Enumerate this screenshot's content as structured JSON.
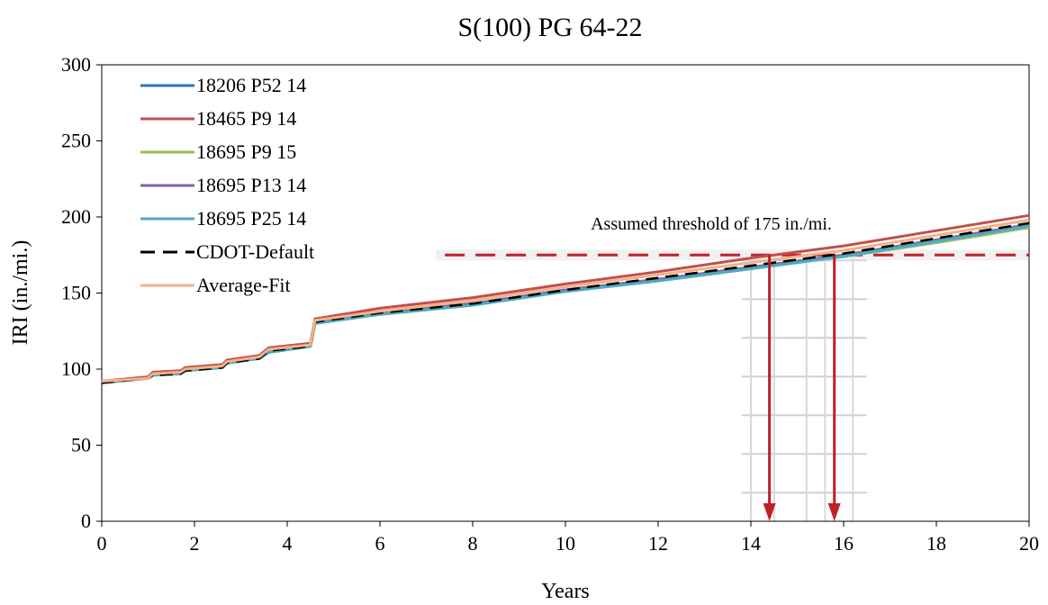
{
  "chart_data": {
    "type": "line",
    "title": "S(100) PG 64-22",
    "xlabel": "Years",
    "ylabel": "IRI (in./mi.)",
    "xlim": [
      0,
      20
    ],
    "ylim": [
      0,
      300
    ],
    "x_ticks": [
      0,
      2,
      4,
      6,
      8,
      10,
      12,
      14,
      16,
      18,
      20
    ],
    "y_ticks": [
      0,
      50,
      100,
      150,
      200,
      250,
      300
    ],
    "grid": false,
    "legend_position": "top-left",
    "series": [
      {
        "name": "18206 P52 14",
        "color": "#2e75b6",
        "dash": "solid",
        "x": [
          0,
          1,
          1.1,
          1.7,
          1.8,
          2.6,
          2.7,
          3.4,
          3.6,
          4.5,
          4.6,
          6,
          8,
          10,
          12,
          14,
          16,
          18,
          20
        ],
        "y": [
          91,
          94,
          96,
          97,
          99,
          101,
          104,
          107,
          111,
          115,
          130,
          137,
          143,
          152,
          159,
          167,
          175,
          184,
          194
        ]
      },
      {
        "name": "18465 P9 14",
        "color": "#c0504d",
        "dash": "solid",
        "x": [
          0,
          1,
          1.1,
          1.7,
          1.8,
          2.6,
          2.7,
          3.4,
          3.6,
          4.5,
          4.6,
          6,
          8,
          10,
          12,
          14,
          16,
          18,
          20
        ],
        "y": [
          92,
          95,
          98,
          99,
          101,
          103,
          106,
          109,
          114,
          117,
          133,
          140,
          147,
          156,
          164,
          173,
          181,
          191,
          201
        ]
      },
      {
        "name": "18695 P9 15",
        "color": "#9bbb59",
        "dash": "solid",
        "x": [
          0,
          1,
          1.1,
          1.7,
          1.8,
          2.6,
          2.7,
          3.4,
          3.6,
          4.5,
          4.6,
          6,
          8,
          10,
          12,
          14,
          16,
          18,
          20
        ],
        "y": [
          91,
          94,
          96,
          97,
          99,
          101,
          104,
          107,
          111,
          115,
          130,
          136,
          142,
          151,
          158,
          166,
          174,
          183,
          193
        ]
      },
      {
        "name": "18695 P13 14",
        "color": "#8064a2",
        "dash": "solid",
        "x": [
          0,
          1,
          1.1,
          1.7,
          1.8,
          2.6,
          2.7,
          3.4,
          3.6,
          4.5,
          4.6,
          6,
          8,
          10,
          12,
          14,
          16,
          18,
          20
        ],
        "y": [
          91,
          94,
          96,
          97,
          99,
          101,
          104,
          107,
          111,
          115,
          131,
          137,
          143,
          152,
          159,
          167,
          175,
          185,
          195
        ]
      },
      {
        "name": "18695 P25 14",
        "color": "#4bacc6",
        "dash": "solid",
        "x": [
          0,
          1,
          1.1,
          1.7,
          1.8,
          2.6,
          2.7,
          3.4,
          3.6,
          4.5,
          4.6,
          6,
          8,
          10,
          12,
          14,
          16,
          18,
          20
        ],
        "y": [
          91,
          94,
          96,
          97,
          99,
          101,
          104,
          107,
          111,
          115,
          130,
          136,
          142,
          151,
          158,
          166,
          174,
          184,
          194
        ]
      },
      {
        "name": "CDOT-Default",
        "color": "#000000",
        "dash": "dashed",
        "x": [
          0,
          1,
          1.1,
          1.7,
          1.8,
          2.6,
          2.7,
          3.4,
          3.6,
          4.5,
          4.6,
          6,
          8,
          10,
          12,
          14,
          16,
          18,
          20
        ],
        "y": [
          91,
          94,
          96,
          97,
          99,
          101,
          104,
          107,
          112,
          115,
          131,
          137,
          143,
          152,
          160,
          168,
          176,
          186,
          196
        ]
      },
      {
        "name": "Average-Fit",
        "color": "#f4b183",
        "dash": "solid",
        "x": [
          0,
          1,
          1.1,
          1.7,
          1.8,
          2.6,
          2.7,
          3.4,
          3.6,
          4.5,
          4.6,
          6,
          8,
          10,
          12,
          14,
          16,
          18,
          20
        ],
        "y": [
          92,
          94,
          97,
          98,
          100,
          102,
          105,
          108,
          113,
          116,
          132,
          138,
          145,
          154,
          162,
          170,
          178,
          188,
          198
        ]
      }
    ],
    "threshold": {
      "y": 175,
      "color": "#c0202a",
      "label": "Assumed threshold of 175 in./mi."
    },
    "arrows": [
      {
        "x": 14.4,
        "y_from": 175,
        "y_to": 0,
        "color": "#c0202a"
      },
      {
        "x": 15.8,
        "y_from": 175,
        "y_to": 0,
        "color": "#c0202a"
      }
    ]
  }
}
